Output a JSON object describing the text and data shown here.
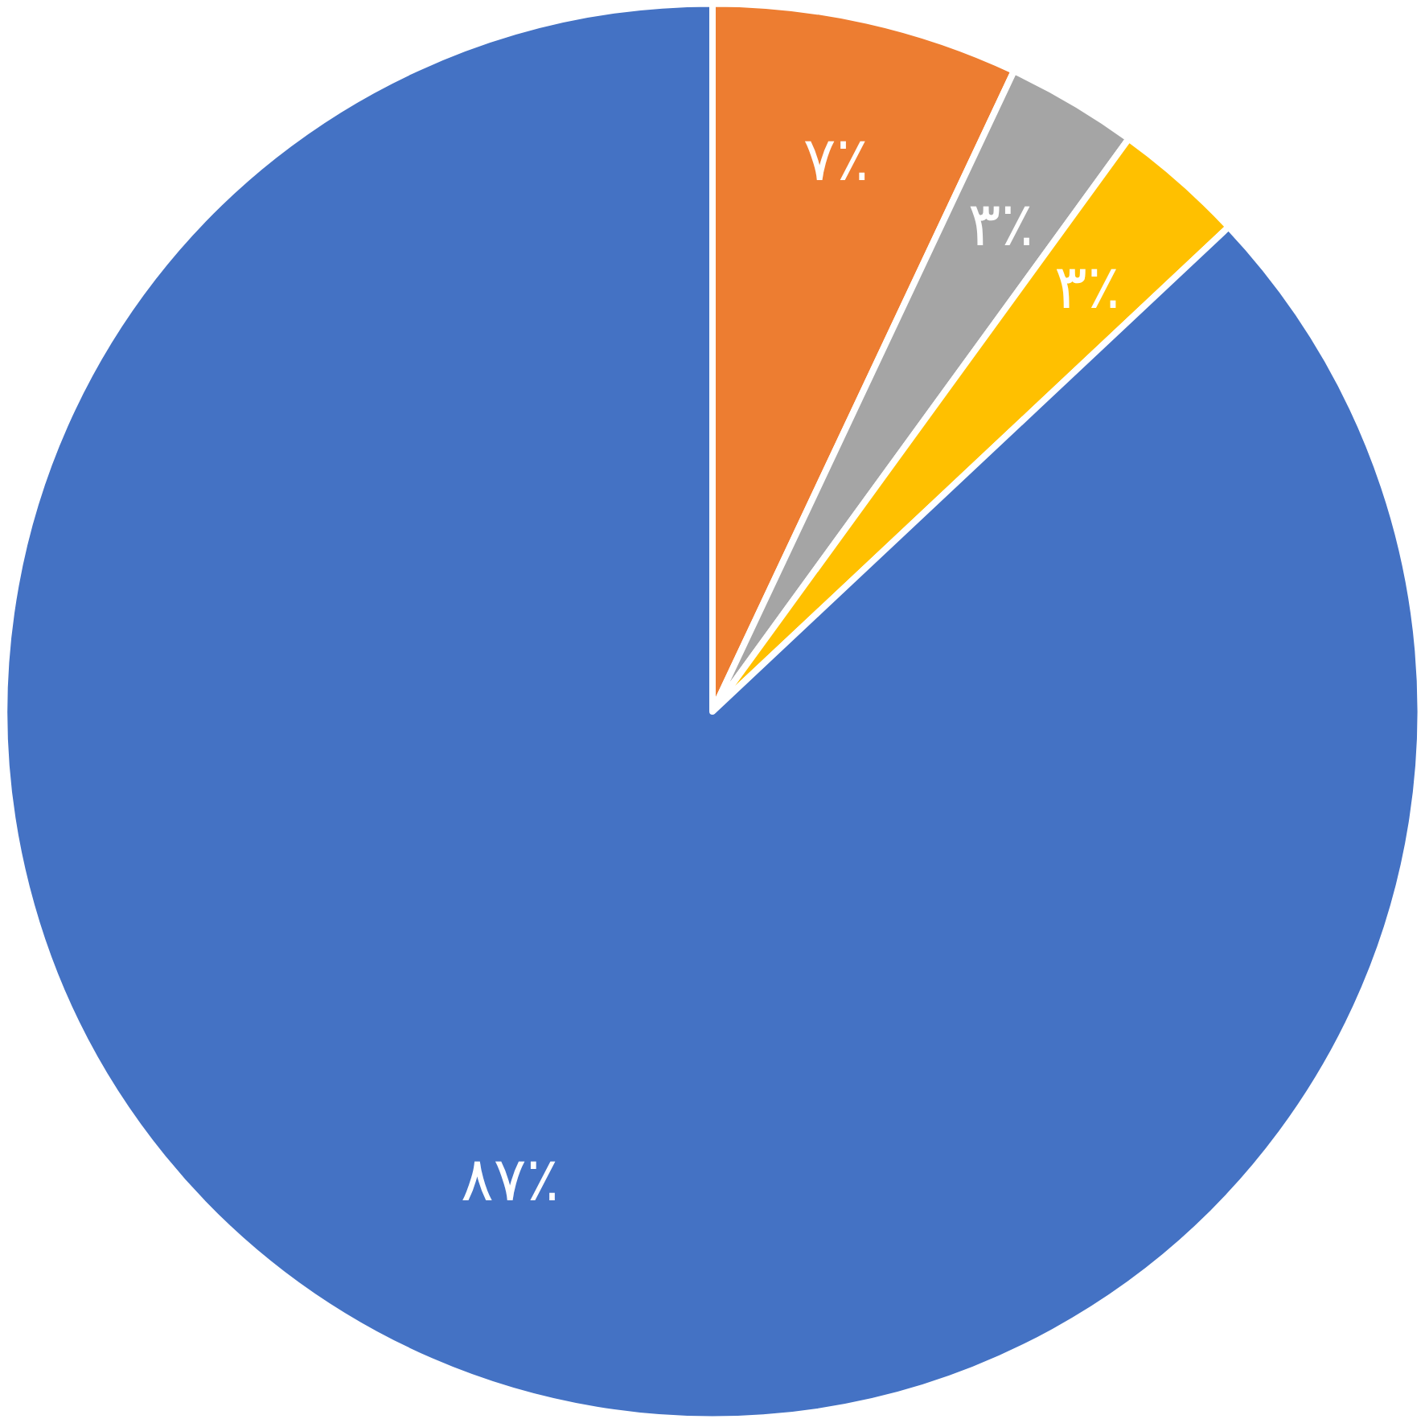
{
  "chart_data": {
    "type": "pie",
    "categories": [
      null,
      null,
      null,
      null
    ],
    "values": [
      7,
      3,
      3,
      87
    ],
    "colors": [
      "#ed7d31",
      "#a5a5a5",
      "#ffc000",
      "#4472c4"
    ],
    "value_labels": [
      "۷٪",
      "۳٪",
      "۳٪",
      "۸۷٪"
    ]
  }
}
